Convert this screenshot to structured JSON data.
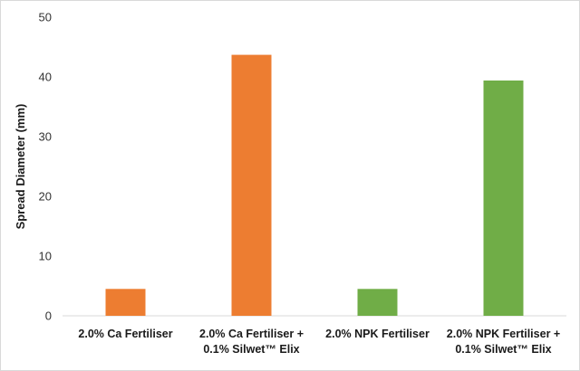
{
  "chart_data": {
    "type": "bar",
    "categories": [
      [
        "2.0% Ca Fertiliser"
      ],
      [
        "2.0% Ca Fertiliser +",
        "0.1% Silwet™ Elix"
      ],
      [
        "2.0% NPK Fertiliser"
      ],
      [
        "2.0% NPK Fertiliser +",
        "0.1% Silwet™ Elix"
      ]
    ],
    "values": [
      4.5,
      43.7,
      4.5,
      39.4
    ],
    "bar_colors": [
      "#ed7d31",
      "#ed7d31",
      "#70ad47",
      "#70ad47"
    ],
    "title": "",
    "xlabel": "",
    "ylabel": "Spread Diameter (mm)",
    "ylim": [
      0,
      50
    ],
    "yticks": [
      0,
      10,
      20,
      30,
      40,
      50
    ],
    "grid": false,
    "axis_color": "#d9d9d9"
  }
}
